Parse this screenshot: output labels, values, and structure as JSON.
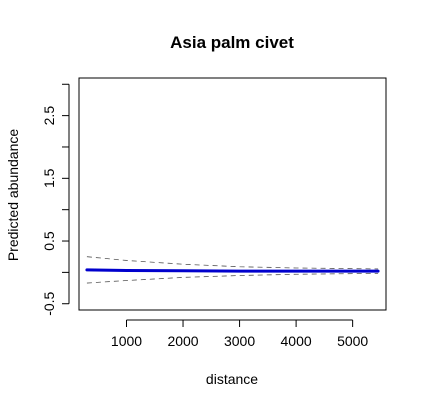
{
  "chart_data": {
    "type": "line",
    "title": "Asia palm civet",
    "xlabel": "distance",
    "ylabel": "Predicted abundance",
    "xlim": [
      160,
      5590
    ],
    "ylim": [
      -0.6,
      3.1
    ],
    "x_ticks": [
      1000,
      2000,
      3000,
      4000,
      5000
    ],
    "x_tick_labels": [
      "1000",
      "2000",
      "3000",
      "4000",
      "5000"
    ],
    "y_ticks": [
      -0.5,
      0,
      0.5,
      1,
      1.5,
      2,
      2.5,
      3
    ],
    "y_tick_labels": [
      "-0.5",
      "",
      "0.5",
      "",
      "1.5",
      "",
      "2.5",
      ""
    ],
    "grid": false,
    "legend": "none",
    "series": [
      {
        "role": "prediction",
        "style": "solid",
        "color": "#0000cd",
        "x": [
          300,
          1000,
          2000,
          3000,
          4000,
          5000,
          5450
        ],
        "y": [
          0.04,
          0.03,
          0.025,
          0.02,
          0.02,
          0.02,
          0.02
        ]
      },
      {
        "role": "upper-bound",
        "style": "dashed",
        "color": "#555555",
        "x": [
          300,
          1000,
          2000,
          3000,
          4000,
          5000,
          5450
        ],
        "y": [
          0.25,
          0.19,
          0.13,
          0.09,
          0.07,
          0.06,
          0.055
        ]
      },
      {
        "role": "lower-bound",
        "style": "dashed",
        "color": "#555555",
        "x": [
          300,
          1000,
          2000,
          3000,
          4000,
          5000,
          5450
        ],
        "y": [
          -0.17,
          -0.13,
          -0.08,
          -0.05,
          -0.03,
          -0.02,
          -0.02
        ]
      }
    ]
  }
}
